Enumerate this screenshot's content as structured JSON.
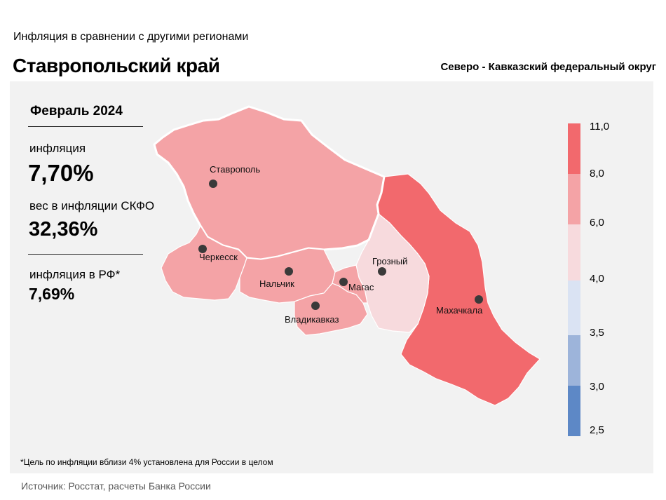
{
  "header": {
    "subtitle": "Инфляция  в сравнении  с другими  регионами",
    "region_title": "Ставропольский край",
    "district": "Северо - Кавказский федеральный округ"
  },
  "stats": {
    "period": "Февраль 2024",
    "inflation_label": "инфляция",
    "inflation_value": "7,70%",
    "weight_label": "вес в инфляции  СКФО",
    "weight_value": "32,36%",
    "rf_label": "инфляция  в РФ*",
    "rf_value": "7,69%"
  },
  "map": {
    "cities": [
      {
        "name": "Ставрополь"
      },
      {
        "name": "Черкесск"
      },
      {
        "name": "Нальчик"
      },
      {
        "name": "Магас"
      },
      {
        "name": "Владикавказ"
      },
      {
        "name": "Грозный"
      },
      {
        "name": "Махачкала"
      }
    ],
    "region_colors": {
      "stavropol": "#f4a3a6",
      "karachay_cherkessia": "#f4a3a6",
      "kabardino_balkaria": "#f4a3a6",
      "north_ossetia": "#f4a3a6",
      "ingushetia": "#f4a3a6",
      "chechnya": "#f7dadd",
      "dagestan": "#f2696d"
    }
  },
  "legend": {
    "ticks": [
      "11,0",
      "8,0",
      "6,0",
      "4,0",
      "3,5",
      "3,0",
      "2,5"
    ],
    "colors": [
      "#f2696d",
      "#f4a3a6",
      "#f7dadd",
      "#dae3f3",
      "#9db4da",
      "#5d88c6"
    ]
  },
  "footnote": "*Цель по инфляции вблизи 4% установлена для России в целом",
  "source": "Источник: Росстат, расчеты Банка России"
}
